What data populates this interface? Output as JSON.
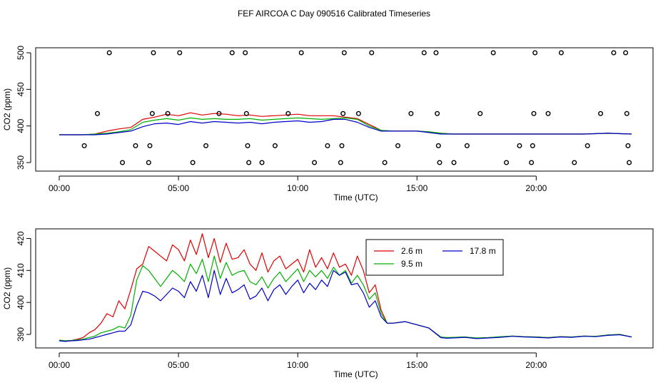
{
  "title": "FEF AIRCOA C  Day 090516  Calibrated Timeseries",
  "colors": {
    "2.6 m": "#e00000",
    "9.5 m": "#00b000",
    "17.8 m": "#0000c8"
  },
  "chart_data": [
    {
      "type": "line",
      "name": "top-panel",
      "xlabel": "Time (UTC)",
      "ylabel": "CO2 (ppm)",
      "xlim": [
        0,
        24
      ],
      "ylim": [
        350,
        500
      ],
      "x_ticks": [
        0,
        5,
        10,
        15,
        20
      ],
      "x_tick_labels": [
        "00:00",
        "05:00",
        "10:00",
        "15:00",
        "20:00"
      ],
      "y_ticks": [
        350,
        400,
        450,
        500
      ],
      "y_tick_labels": [
        "350",
        "400",
        "450",
        "500"
      ],
      "x": [
        0.0,
        0.5,
        1.0,
        1.5,
        2.0,
        2.5,
        3.0,
        3.5,
        4.0,
        4.5,
        5.0,
        5.5,
        6.0,
        6.5,
        7.0,
        7.5,
        8.0,
        8.5,
        9.0,
        9.5,
        10.0,
        10.5,
        11.0,
        11.5,
        12.0,
        12.5,
        13.0,
        13.5,
        14.0,
        14.5,
        15.0,
        15.5,
        16.0,
        16.5,
        17.0,
        18.0,
        19.0,
        20.0,
        21.0,
        22.0,
        23.0,
        24.0
      ],
      "series": [
        {
          "name": "2.6 m",
          "values": [
            388,
            388,
            388,
            389,
            393,
            396,
            398,
            409,
            412,
            416,
            414,
            418,
            415,
            417,
            416,
            414,
            415,
            413,
            414,
            415,
            416,
            414,
            414,
            414,
            412,
            410,
            402,
            394,
            393,
            393,
            393,
            392,
            390,
            389,
            389,
            389,
            389,
            389,
            389,
            389,
            390,
            389
          ]
        },
        {
          "name": "9.5 m",
          "values": [
            388,
            388,
            388,
            389,
            390,
            392,
            395,
            405,
            408,
            410,
            408,
            411,
            409,
            410,
            409,
            409,
            410,
            408,
            409,
            410,
            411,
            410,
            409,
            410,
            411,
            409,
            400,
            394,
            393,
            393,
            393,
            392,
            390,
            389,
            389,
            389,
            389,
            389,
            389,
            389,
            390,
            389
          ]
        },
        {
          "name": "17.8 m",
          "values": [
            388,
            388,
            388,
            388,
            389,
            391,
            393,
            399,
            403,
            404,
            402,
            406,
            404,
            406,
            405,
            404,
            405,
            403,
            405,
            406,
            407,
            405,
            406,
            409,
            409,
            405,
            398,
            393,
            393,
            393,
            393,
            391,
            389,
            389,
            389,
            389,
            389,
            389,
            389,
            389,
            390,
            389
          ]
        }
      ],
      "markers": {
        "style": "open-circle",
        "points": [
          {
            "x": 1.05,
            "y": 373
          },
          {
            "x": 1.6,
            "y": 417
          },
          {
            "x": 2.1,
            "y": 500
          },
          {
            "x": 2.65,
            "y": 350
          },
          {
            "x": 3.2,
            "y": 373
          },
          {
            "x": 3.75,
            "y": 350
          },
          {
            "x": 3.8,
            "y": 373
          },
          {
            "x": 3.9,
            "y": 417
          },
          {
            "x": 3.95,
            "y": 500
          },
          {
            "x": 4.55,
            "y": 417
          },
          {
            "x": 5.05,
            "y": 500
          },
          {
            "x": 5.6,
            "y": 350
          },
          {
            "x": 6.15,
            "y": 373
          },
          {
            "x": 6.7,
            "y": 417
          },
          {
            "x": 7.25,
            "y": 500
          },
          {
            "x": 7.8,
            "y": 500
          },
          {
            "x": 7.85,
            "y": 417
          },
          {
            "x": 7.9,
            "y": 373
          },
          {
            "x": 7.95,
            "y": 350
          },
          {
            "x": 8.5,
            "y": 350
          },
          {
            "x": 9.05,
            "y": 373
          },
          {
            "x": 9.6,
            "y": 417
          },
          {
            "x": 10.15,
            "y": 500
          },
          {
            "x": 10.7,
            "y": 350
          },
          {
            "x": 11.25,
            "y": 373
          },
          {
            "x": 11.8,
            "y": 350
          },
          {
            "x": 11.85,
            "y": 373
          },
          {
            "x": 11.9,
            "y": 417
          },
          {
            "x": 11.95,
            "y": 500
          },
          {
            "x": 12.55,
            "y": 417
          },
          {
            "x": 13.1,
            "y": 500
          },
          {
            "x": 13.65,
            "y": 350
          },
          {
            "x": 14.2,
            "y": 373
          },
          {
            "x": 14.75,
            "y": 417
          },
          {
            "x": 15.3,
            "y": 500
          },
          {
            "x": 15.8,
            "y": 500
          },
          {
            "x": 15.85,
            "y": 417
          },
          {
            "x": 15.9,
            "y": 373
          },
          {
            "x": 15.95,
            "y": 350
          },
          {
            "x": 16.55,
            "y": 350
          },
          {
            "x": 17.1,
            "y": 373
          },
          {
            "x": 17.65,
            "y": 417
          },
          {
            "x": 18.2,
            "y": 500
          },
          {
            "x": 18.75,
            "y": 350
          },
          {
            "x": 19.3,
            "y": 373
          },
          {
            "x": 19.8,
            "y": 350
          },
          {
            "x": 19.85,
            "y": 373
          },
          {
            "x": 19.9,
            "y": 417
          },
          {
            "x": 19.95,
            "y": 500
          },
          {
            "x": 20.5,
            "y": 417
          },
          {
            "x": 21.05,
            "y": 500
          },
          {
            "x": 21.6,
            "y": 350
          },
          {
            "x": 22.15,
            "y": 373
          },
          {
            "x": 22.7,
            "y": 417
          },
          {
            "x": 23.25,
            "y": 500
          },
          {
            "x": 23.75,
            "y": 500
          },
          {
            "x": 23.8,
            "y": 417
          },
          {
            "x": 23.85,
            "y": 373
          },
          {
            "x": 23.9,
            "y": 350
          }
        ]
      }
    },
    {
      "type": "line",
      "name": "bottom-panel",
      "xlabel": "Time (UTC)",
      "ylabel": "CO2 (ppm)",
      "xlim": [
        0,
        24
      ],
      "ylim": [
        388,
        421
      ],
      "x_ticks": [
        0,
        5,
        10,
        15,
        20
      ],
      "x_tick_labels": [
        "00:00",
        "05:00",
        "10:00",
        "15:00",
        "20:00"
      ],
      "y_ticks": [
        390,
        400,
        410,
        420
      ],
      "y_tick_labels": [
        "390",
        "400",
        "410",
        "420"
      ],
      "legend": {
        "placement": "top-right",
        "entries": [
          "2.6 m",
          "17.8 m",
          "9.5 m"
        ]
      },
      "x": [
        0.0,
        0.25,
        0.5,
        0.75,
        1.0,
        1.25,
        1.5,
        1.75,
        2.0,
        2.25,
        2.5,
        2.75,
        3.0,
        3.25,
        3.5,
        3.75,
        4.0,
        4.25,
        4.5,
        4.75,
        5.0,
        5.25,
        5.5,
        5.75,
        6.0,
        6.25,
        6.5,
        6.75,
        7.0,
        7.25,
        7.5,
        7.75,
        8.0,
        8.25,
        8.5,
        8.75,
        9.0,
        9.25,
        9.5,
        9.75,
        10.0,
        10.25,
        10.5,
        10.75,
        11.0,
        11.25,
        11.5,
        11.75,
        12.0,
        12.25,
        12.5,
        12.75,
        13.0,
        13.25,
        13.5,
        13.75,
        14.0,
        14.5,
        15.0,
        15.5,
        16.0,
        16.25,
        16.5,
        17.0,
        17.5,
        18.0,
        18.5,
        19.0,
        19.5,
        20.0,
        20.5,
        21.0,
        21.5,
        22.0,
        22.5,
        23.0,
        23.5,
        24.0
      ],
      "series": [
        {
          "name": "2.6 m",
          "values": [
            388.2,
            388.0,
            388.1,
            388.5,
            389.0,
            390.5,
            391.5,
            393.5,
            396.5,
            395.5,
            400.5,
            398.0,
            404.0,
            410.5,
            412.0,
            417.5,
            416.0,
            414.5,
            413.0,
            418.0,
            416.5,
            413.0,
            419.5,
            415.0,
            421.5,
            414.0,
            420.0,
            412.5,
            418.5,
            413.5,
            414.0,
            416.5,
            412.0,
            410.0,
            415.5,
            409.5,
            413.0,
            414.5,
            410.5,
            412.0,
            413.5,
            409.5,
            416.5,
            411.0,
            414.0,
            410.5,
            415.5,
            411.0,
            412.0,
            408.5,
            414.5,
            410.0,
            403.0,
            405.5,
            397.5,
            393.5,
            393.5,
            394.0,
            393.0,
            392.0,
            389.0,
            388.9,
            389.0,
            389.2,
            388.8,
            389.0,
            389.2,
            389.5,
            389.3,
            389.2,
            389.0,
            389.3,
            389.2,
            389.5,
            389.4,
            389.8,
            390.0,
            389.2
          ]
        },
        {
          "name": "9.5 m",
          "values": [
            388.2,
            388.0,
            388.1,
            388.3,
            388.5,
            389.0,
            389.5,
            390.5,
            391.0,
            391.5,
            392.5,
            392.0,
            396.0,
            407.0,
            411.5,
            410.0,
            407.5,
            405.0,
            407.5,
            410.0,
            408.5,
            406.5,
            412.0,
            409.0,
            413.5,
            406.5,
            414.5,
            407.5,
            412.5,
            408.5,
            409.5,
            410.0,
            406.5,
            405.5,
            408.0,
            404.5,
            407.5,
            409.5,
            406.5,
            408.5,
            410.5,
            406.5,
            410.0,
            408.0,
            410.0,
            407.5,
            411.0,
            408.5,
            410.0,
            406.0,
            408.5,
            405.5,
            401.0,
            403.0,
            396.5,
            393.5,
            393.5,
            394.0,
            393.0,
            392.0,
            389.2,
            389.0,
            389.1,
            389.2,
            388.9,
            389.0,
            389.3,
            389.5,
            389.3,
            389.2,
            389.0,
            389.3,
            389.2,
            389.5,
            389.4,
            389.8,
            390.0,
            389.2
          ]
        },
        {
          "name": "17.8 m",
          "values": [
            388.0,
            387.8,
            388.0,
            388.1,
            388.3,
            388.5,
            389.0,
            389.5,
            390.0,
            390.5,
            391.0,
            391.0,
            393.0,
            399.0,
            403.5,
            403.0,
            402.0,
            400.5,
            402.5,
            404.5,
            403.5,
            401.5,
            406.5,
            403.5,
            408.5,
            401.5,
            410.0,
            402.5,
            407.5,
            403.0,
            404.0,
            405.5,
            401.0,
            402.0,
            404.5,
            400.5,
            404.0,
            405.5,
            402.5,
            405.0,
            407.0,
            403.0,
            406.0,
            404.0,
            407.0,
            405.0,
            410.0,
            408.5,
            409.5,
            405.5,
            406.0,
            403.0,
            398.5,
            400.5,
            395.5,
            393.5,
            393.5,
            394.0,
            393.0,
            392.0,
            389.0,
            388.8,
            388.9,
            389.1,
            388.7,
            388.9,
            389.1,
            389.4,
            389.2,
            389.1,
            388.9,
            389.2,
            389.1,
            389.4,
            389.3,
            389.7,
            389.9,
            389.2
          ]
        }
      ]
    }
  ]
}
